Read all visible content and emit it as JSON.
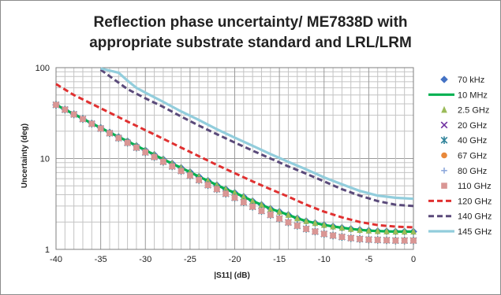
{
  "chart_data": {
    "type": "line",
    "title_line1": "Reflection phase uncertainty/ ME7838D with",
    "title_line2": "appropriate substrate standard and LRL/LRM",
    "xlabel": "|S11| (dB)",
    "ylabel": "Uncertainty (deg)",
    "xlim": [
      -40,
      0
    ],
    "ylim": [
      1,
      100
    ],
    "yscale": "log",
    "x_ticks": [
      -40,
      -35,
      -30,
      -25,
      -20,
      -15,
      -10,
      -5,
      0
    ],
    "x_tick_labels": [
      "-40",
      "-35",
      "-30",
      "-25",
      "-20",
      "-15",
      "-10",
      "-5",
      "0"
    ],
    "y_ticks": [
      1,
      10,
      100
    ],
    "y_tick_labels": [
      "1",
      "10",
      "100"
    ],
    "grid": true,
    "legend_position": "right",
    "x_step": 1,
    "series": [
      {
        "name": "70 kHz",
        "style": "marker",
        "marker": "diamond",
        "color": "#4472c4",
        "x_start": -40,
        "x_end": 0,
        "values": [
          39,
          34.6,
          30.8,
          27.4,
          24.4,
          21.8,
          19.4,
          17.3,
          15.5,
          13.8,
          12.3,
          11,
          9.8,
          8.8,
          7.9,
          7.1,
          6.3,
          5.7,
          5.1,
          4.6,
          4.2,
          3.8,
          3.4,
          3.1,
          2.8,
          2.6,
          2.4,
          2.2,
          2.05,
          1.95,
          1.86,
          1.79,
          1.73,
          1.68,
          1.64,
          1.61,
          1.59,
          1.58,
          1.57,
          1.57,
          1.57
        ]
      },
      {
        "name": "10 MHz",
        "style": "line",
        "color": "#00b050",
        "x_start": -40,
        "x_end": 0,
        "values": [
          39,
          34.6,
          30.8,
          27.4,
          24.4,
          21.8,
          19.4,
          17.3,
          15.5,
          13.8,
          12.3,
          11,
          9.8,
          8.8,
          7.9,
          7.1,
          6.3,
          5.7,
          5.1,
          4.6,
          4.2,
          3.8,
          3.4,
          3.1,
          2.8,
          2.6,
          2.4,
          2.2,
          2.05,
          1.95,
          1.86,
          1.79,
          1.73,
          1.68,
          1.64,
          1.61,
          1.59,
          1.58,
          1.57,
          1.57,
          1.57
        ]
      },
      {
        "name": "2.5 GHz",
        "style": "marker",
        "marker": "triangle",
        "color": "#9bbb59",
        "x_start": -40,
        "x_end": 0,
        "values": [
          39,
          34.6,
          30.8,
          27.4,
          24.4,
          21.8,
          19.4,
          17.3,
          15.5,
          13.8,
          12.3,
          11,
          9.8,
          8.8,
          7.9,
          7.1,
          6.3,
          5.7,
          5.1,
          4.6,
          4.2,
          3.8,
          3.4,
          3.1,
          2.8,
          2.6,
          2.4,
          2.2,
          2.05,
          1.95,
          1.86,
          1.79,
          1.73,
          1.68,
          1.64,
          1.61,
          1.59,
          1.58,
          1.57,
          1.57,
          1.57
        ]
      },
      {
        "name": "20 GHz",
        "style": "marker",
        "marker": "x",
        "color": "#7030a0",
        "x_start": -40,
        "x_end": 0,
        "values": [
          39,
          34.5,
          30.6,
          27.2,
          24.1,
          21.4,
          19,
          16.8,
          14.9,
          13.2,
          11.7,
          10.4,
          9.2,
          8.2,
          7.3,
          6.5,
          5.8,
          5.1,
          4.6,
          4.1,
          3.7,
          3.3,
          2.95,
          2.65,
          2.4,
          2.18,
          1.98,
          1.82,
          1.68,
          1.57,
          1.48,
          1.42,
          1.37,
          1.33,
          1.3,
          1.28,
          1.27,
          1.26,
          1.25,
          1.25,
          1.25
        ]
      },
      {
        "name": "40 GHz",
        "style": "marker",
        "marker": "asterisk",
        "color": "#31849b",
        "x_start": -40,
        "x_end": 0,
        "values": [
          39,
          34.5,
          30.6,
          27.2,
          24.1,
          21.4,
          19,
          16.8,
          14.9,
          13.2,
          11.7,
          10.4,
          9.2,
          8.2,
          7.3,
          6.5,
          5.8,
          5.1,
          4.6,
          4.1,
          3.7,
          3.3,
          2.95,
          2.65,
          2.4,
          2.18,
          1.98,
          1.82,
          1.68,
          1.57,
          1.48,
          1.42,
          1.37,
          1.33,
          1.3,
          1.28,
          1.27,
          1.26,
          1.25,
          1.25,
          1.25
        ]
      },
      {
        "name": "67 GHz",
        "style": "marker",
        "marker": "circle",
        "color": "#e8883a",
        "x_start": -40,
        "x_end": 0,
        "values": [
          39,
          34.5,
          30.6,
          27.2,
          24.1,
          21.4,
          19,
          16.8,
          14.9,
          13.2,
          11.7,
          10.4,
          9.2,
          8.2,
          7.3,
          6.5,
          5.8,
          5.1,
          4.6,
          4.1,
          3.7,
          3.3,
          2.95,
          2.65,
          2.4,
          2.18,
          1.98,
          1.82,
          1.68,
          1.57,
          1.48,
          1.42,
          1.37,
          1.33,
          1.3,
          1.28,
          1.27,
          1.26,
          1.25,
          1.25,
          1.25
        ]
      },
      {
        "name": "80 GHz",
        "style": "marker",
        "marker": "plus",
        "color": "#8faadc",
        "x_start": -40,
        "x_end": 0,
        "values": [
          39,
          34.5,
          30.6,
          27.2,
          24.1,
          21.4,
          19,
          16.8,
          14.9,
          13.2,
          11.7,
          10.4,
          9.2,
          8.2,
          7.3,
          6.5,
          5.8,
          5.1,
          4.6,
          4.1,
          3.7,
          3.3,
          2.95,
          2.65,
          2.4,
          2.18,
          1.98,
          1.82,
          1.68,
          1.57,
          1.48,
          1.42,
          1.37,
          1.33,
          1.3,
          1.28,
          1.27,
          1.26,
          1.25,
          1.25,
          1.25
        ]
      },
      {
        "name": "110 GHz",
        "style": "marker",
        "marker": "square",
        "color": "#d99694",
        "x_start": -40,
        "x_end": 0,
        "values": [
          39,
          34.5,
          30.6,
          27.2,
          24.1,
          21.4,
          19,
          16.8,
          14.9,
          13.2,
          11.7,
          10.4,
          9.2,
          8.2,
          7.3,
          6.5,
          5.8,
          5.1,
          4.6,
          4.1,
          3.7,
          3.3,
          2.95,
          2.65,
          2.4,
          2.18,
          1.98,
          1.82,
          1.68,
          1.57,
          1.48,
          1.42,
          1.37,
          1.33,
          1.3,
          1.28,
          1.27,
          1.26,
          1.25,
          1.25,
          1.25
        ]
      },
      {
        "name": "120 GHz",
        "style": "dash",
        "color": "#e03030",
        "x": [
          -40,
          -38,
          -36,
          -34,
          -32,
          -30,
          -28,
          -26,
          -24,
          -22,
          -20,
          -18,
          -16,
          -14,
          -12,
          -10,
          -8,
          -6,
          -4,
          -2,
          0
        ],
        "values": [
          66,
          50,
          40,
          32,
          25.5,
          20.5,
          16.5,
          13.2,
          10.6,
          8.5,
          6.9,
          5.6,
          4.6,
          3.8,
          3.1,
          2.6,
          2.25,
          2.0,
          1.85,
          1.78,
          1.75
        ]
      },
      {
        "name": "140 GHz",
        "style": "dash",
        "color": "#5a4a7a",
        "x": [
          -35,
          -32,
          -30,
          -28,
          -26,
          -24,
          -22,
          -20,
          -18,
          -16,
          -14,
          -12,
          -10,
          -8,
          -6,
          -4,
          -2,
          0
        ],
        "values": [
          95,
          58,
          46,
          37,
          29,
          23,
          18.5,
          15,
          12.2,
          10,
          8.2,
          6.8,
          5.6,
          4.6,
          3.9,
          3.4,
          3.1,
          3.0
        ]
      },
      {
        "name": "145 GHz",
        "style": "line",
        "color": "#92cddc",
        "x": [
          -35,
          -33,
          -32,
          -31,
          -30,
          -28,
          -26,
          -24,
          -22,
          -20,
          -18,
          -16,
          -14,
          -12,
          -10,
          -8,
          -6,
          -4,
          -2,
          0
        ],
        "values": [
          98,
          88,
          72,
          60,
          53,
          42,
          33,
          26.5,
          21,
          17,
          13.8,
          11.2,
          9.2,
          7.6,
          6.2,
          5.2,
          4.4,
          3.9,
          3.7,
          3.6
        ]
      }
    ]
  }
}
